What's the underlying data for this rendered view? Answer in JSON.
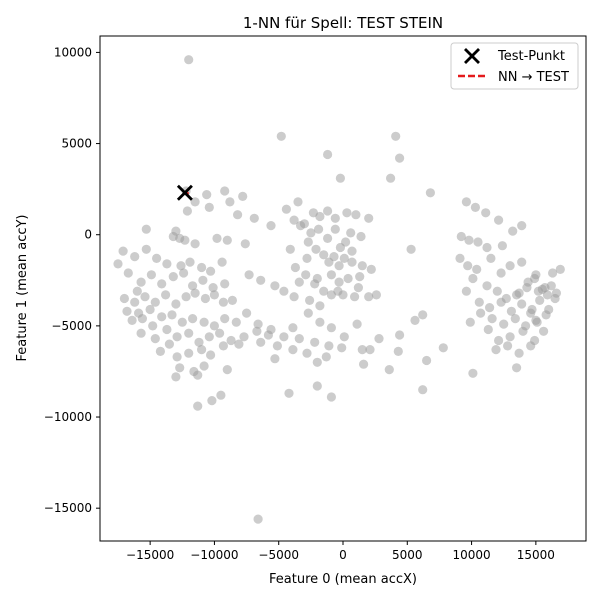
{
  "chart_data": {
    "type": "scatter",
    "title": "1-NN für Spell: TEST STEIN",
    "xlabel": "Feature 0 (mean accX)",
    "ylabel": "Feature 1 (mean accY)",
    "xlim": [
      -18900,
      18900
    ],
    "ylim": [
      -16800,
      10900
    ],
    "x_ticks": [
      -15000,
      -10000,
      -5000,
      0,
      5000,
      10000,
      15000
    ],
    "y_ticks": [
      -15000,
      -10000,
      -5000,
      0,
      5000,
      10000
    ],
    "x_tick_labels": [
      "−15000",
      "−10000",
      "−5000",
      "0",
      "5000",
      "10000",
      "15000"
    ],
    "y_tick_labels": [
      "−15000",
      "−10000",
      "−5000",
      "0",
      "5000",
      "10000"
    ],
    "legend": {
      "position": "top-right",
      "entries": [
        {
          "label": "Test-Punkt",
          "marker": "x-cross",
          "color": "#000000"
        },
        {
          "label": "NN → TEST",
          "marker": "dashed-line",
          "color": "#e41a1c"
        }
      ]
    },
    "test_point": {
      "x": -12300,
      "y": 2300
    },
    "nearest_neighbor": {
      "x": -12000,
      "y": 2250
    },
    "training_points_color": "#999999",
    "series": [
      {
        "points": [
          [
            -12000,
            9600
          ],
          [
            -4800,
            5400
          ],
          [
            4100,
            5400
          ],
          [
            4400,
            4200
          ],
          [
            -1200,
            4400
          ],
          [
            3700,
            3100
          ],
          [
            -200,
            3100
          ],
          [
            -12200,
            2400
          ],
          [
            -10600,
            2200
          ],
          [
            -9200,
            2400
          ],
          [
            -7800,
            2100
          ],
          [
            6800,
            2300
          ],
          [
            -12100,
            1300
          ],
          [
            -11500,
            1800
          ],
          [
            -10400,
            1500
          ],
          [
            -8800,
            1800
          ],
          [
            -8200,
            1100
          ],
          [
            -6900,
            900
          ],
          [
            -4400,
            1400
          ],
          [
            -3500,
            1800
          ],
          [
            -2300,
            1200
          ],
          [
            -1800,
            1000
          ],
          [
            -1200,
            1300
          ],
          [
            -600,
            900
          ],
          [
            300,
            1200
          ],
          [
            1000,
            1100
          ],
          [
            2000,
            900
          ],
          [
            9600,
            1800
          ],
          [
            10300,
            1500
          ],
          [
            11100,
            1200
          ],
          [
            12100,
            800
          ],
          [
            13900,
            500
          ],
          [
            -13000,
            200
          ],
          [
            -15300,
            300
          ],
          [
            -13200,
            -100
          ],
          [
            -12700,
            -200
          ],
          [
            -12300,
            -300
          ],
          [
            -11500,
            -500
          ],
          [
            -9800,
            -200
          ],
          [
            -9000,
            -300
          ],
          [
            -7600,
            -500
          ],
          [
            -5600,
            500
          ],
          [
            -3800,
            800
          ],
          [
            -3000,
            600
          ],
          [
            -1900,
            300
          ],
          [
            -1200,
            -200
          ],
          [
            -600,
            300
          ],
          [
            200,
            -400
          ],
          [
            600,
            100
          ],
          [
            1400,
            -100
          ],
          [
            5300,
            -800
          ],
          [
            9200,
            -100
          ],
          [
            9800,
            -300
          ],
          [
            10500,
            -400
          ],
          [
            11200,
            -700
          ],
          [
            12400,
            -600
          ],
          [
            13200,
            200
          ],
          [
            -17100,
            -900
          ],
          [
            -16200,
            -1200
          ],
          [
            -15300,
            -800
          ],
          [
            -14500,
            -1300
          ],
          [
            -13700,
            -1600
          ],
          [
            -12600,
            -1700
          ],
          [
            -11900,
            -1500
          ],
          [
            -11000,
            -1800
          ],
          [
            -10300,
            -2000
          ],
          [
            -9400,
            -1500
          ],
          [
            -2700,
            -400
          ],
          [
            -2100,
            -800
          ],
          [
            -1500,
            -1100
          ],
          [
            -700,
            -1200
          ],
          [
            100,
            -1300
          ],
          [
            700,
            -1500
          ],
          [
            1500,
            -1700
          ],
          [
            2200,
            -1900
          ],
          [
            9100,
            -1300
          ],
          [
            9700,
            -1700
          ],
          [
            10400,
            -1900
          ],
          [
            11500,
            -1300
          ],
          [
            12300,
            -2100
          ],
          [
            13000,
            -1700
          ],
          [
            13900,
            -1500
          ],
          [
            -17500,
            -1600
          ],
          [
            -16700,
            -2100
          ],
          [
            -15700,
            -2600
          ],
          [
            -14900,
            -2200
          ],
          [
            -14100,
            -2700
          ],
          [
            -13200,
            -2300
          ],
          [
            -12400,
            -2100
          ],
          [
            -11700,
            -2800
          ],
          [
            -10900,
            -2500
          ],
          [
            -10100,
            -2900
          ],
          [
            -9200,
            -2700
          ],
          [
            -7300,
            -2200
          ],
          [
            -6400,
            -2500
          ],
          [
            -5300,
            -2800
          ],
          [
            -3700,
            -1800
          ],
          [
            -2900,
            -2200
          ],
          [
            -2200,
            -2700
          ],
          [
            -1500,
            -3100
          ],
          [
            -900,
            -2200
          ],
          [
            -300,
            -2600
          ],
          [
            400,
            -2400
          ],
          [
            1200,
            -2900
          ],
          [
            2000,
            -3400
          ],
          [
            2600,
            -3300
          ],
          [
            10100,
            -2400
          ],
          [
            11200,
            -2800
          ],
          [
            12000,
            -3100
          ],
          [
            12700,
            -3500
          ],
          [
            13500,
            -3300
          ],
          [
            14400,
            -2600
          ],
          [
            15000,
            -2200
          ],
          [
            15700,
            -2900
          ],
          [
            16300,
            -2100
          ],
          [
            16900,
            -1900
          ],
          [
            -16000,
            -3100
          ],
          [
            -15400,
            -3400
          ],
          [
            -14600,
            -3700
          ],
          [
            -13800,
            -3300
          ],
          [
            -13000,
            -3800
          ],
          [
            -12200,
            -3400
          ],
          [
            -11500,
            -3200
          ],
          [
            -10700,
            -3500
          ],
          [
            -10000,
            -3300
          ],
          [
            -9300,
            -3700
          ],
          [
            -8600,
            -3600
          ],
          [
            -4600,
            -3100
          ],
          [
            -3800,
            -3400
          ],
          [
            -2600,
            -3600
          ],
          [
            -1800,
            -3900
          ],
          [
            -900,
            -3300
          ],
          [
            0,
            -3300
          ],
          [
            900,
            -3400
          ],
          [
            9600,
            -3100
          ],
          [
            10600,
            -3700
          ],
          [
            11400,
            -4000
          ],
          [
            12300,
            -3700
          ],
          [
            13100,
            -4200
          ],
          [
            13900,
            -3800
          ],
          [
            14600,
            -4300
          ],
          [
            15300,
            -3600
          ],
          [
            15900,
            -3300
          ],
          [
            16500,
            -3500
          ],
          [
            -17000,
            -3500
          ],
          [
            -15900,
            -4300
          ],
          [
            -15000,
            -4100
          ],
          [
            -14100,
            -4500
          ],
          [
            -13300,
            -4400
          ],
          [
            -12500,
            -4800
          ],
          [
            -11700,
            -4600
          ],
          [
            -10800,
            -4800
          ],
          [
            -10000,
            -5000
          ],
          [
            -9200,
            -4600
          ],
          [
            -8300,
            -4800
          ],
          [
            -7500,
            -4300
          ],
          [
            -6600,
            -4900
          ],
          [
            -5600,
            -5200
          ],
          [
            -3900,
            -5100
          ],
          [
            -2700,
            -4300
          ],
          [
            -1800,
            -4800
          ],
          [
            -900,
            -5100
          ],
          [
            100,
            -5600
          ],
          [
            1100,
            -4900
          ],
          [
            6200,
            -4400
          ],
          [
            9900,
            -4800
          ],
          [
            10700,
            -4300
          ],
          [
            11600,
            -4600
          ],
          [
            12500,
            -4900
          ],
          [
            13400,
            -4600
          ],
          [
            14200,
            -5000
          ],
          [
            15000,
            -4700
          ],
          [
            15800,
            -4400
          ],
          [
            -15700,
            -5400
          ],
          [
            -14600,
            -5700
          ],
          [
            -13700,
            -5200
          ],
          [
            -12900,
            -5600
          ],
          [
            -12000,
            -5400
          ],
          [
            -11200,
            -5900
          ],
          [
            -10400,
            -5600
          ],
          [
            -9600,
            -5400
          ],
          [
            -8700,
            -5800
          ],
          [
            -7700,
            -5600
          ],
          [
            -6700,
            -5300
          ],
          [
            -5800,
            -5500
          ],
          [
            -4600,
            -5600
          ],
          [
            -3400,
            -5700
          ],
          [
            -2200,
            -5900
          ],
          [
            -1100,
            -6100
          ],
          [
            1500,
            -6300
          ],
          [
            2800,
            -5700
          ],
          [
            4400,
            -5500
          ],
          [
            5600,
            -4700
          ],
          [
            11300,
            -5200
          ],
          [
            12100,
            -5800
          ],
          [
            13000,
            -5600
          ],
          [
            14000,
            -5300
          ],
          [
            14900,
            -5800
          ],
          [
            15600,
            -5300
          ],
          [
            -14200,
            -6400
          ],
          [
            -12900,
            -6700
          ],
          [
            -12000,
            -6500
          ],
          [
            -11000,
            -6300
          ],
          [
            -10300,
            -6600
          ],
          [
            -9300,
            -6100
          ],
          [
            -8100,
            -6000
          ],
          [
            -6400,
            -5900
          ],
          [
            -5100,
            -6100
          ],
          [
            -3900,
            -6300
          ],
          [
            -2800,
            -6500
          ],
          [
            -1300,
            -6700
          ],
          [
            -100,
            -6200
          ],
          [
            2100,
            -6300
          ],
          [
            4300,
            -6400
          ],
          [
            7800,
            -6200
          ],
          [
            11900,
            -6300
          ],
          [
            12800,
            -6100
          ],
          [
            13700,
            -6500
          ],
          [
            14600,
            -6100
          ],
          [
            -12700,
            -7300
          ],
          [
            -11600,
            -7500
          ],
          [
            -10800,
            -7200
          ],
          [
            -9000,
            -7400
          ],
          [
            -5300,
            -6800
          ],
          [
            -2000,
            -7000
          ],
          [
            1600,
            -7100
          ],
          [
            3600,
            -7400
          ],
          [
            6500,
            -6900
          ],
          [
            10100,
            -7600
          ],
          [
            13500,
            -7300
          ],
          [
            -13000,
            -7800
          ],
          [
            -11300,
            -7700
          ],
          [
            -10200,
            -9100
          ],
          [
            -9500,
            -8800
          ],
          [
            -4200,
            -8700
          ],
          [
            -2000,
            -8300
          ],
          [
            -900,
            -8900
          ],
          [
            6200,
            -8500
          ],
          [
            -11300,
            -9400
          ],
          [
            -6600,
            -15600
          ],
          [
            -16800,
            -4200
          ],
          [
            -16400,
            -4700
          ],
          [
            -14800,
            -5000
          ],
          [
            -13500,
            -6000
          ],
          [
            -16200,
            -3700
          ],
          [
            -15600,
            -4600
          ],
          [
            14900,
            -2400
          ],
          [
            15500,
            -3000
          ],
          [
            16200,
            -2800
          ],
          [
            16600,
            -3200
          ],
          [
            15200,
            -3100
          ],
          [
            14700,
            -4100
          ],
          [
            15100,
            -4800
          ],
          [
            16000,
            -4100
          ],
          [
            14300,
            -2900
          ],
          [
            13700,
            -3200
          ],
          [
            -400,
            -3100
          ],
          [
            -1100,
            -1500
          ],
          [
            -2500,
            100
          ],
          [
            -3300,
            500
          ],
          [
            -4100,
            -800
          ],
          [
            -2800,
            -1300
          ],
          [
            -200,
            -700
          ],
          [
            700,
            -900
          ],
          [
            1300,
            -2300
          ],
          [
            -300,
            -1700
          ],
          [
            -2000,
            -2400
          ],
          [
            -3400,
            -2600
          ]
        ]
      }
    ]
  }
}
